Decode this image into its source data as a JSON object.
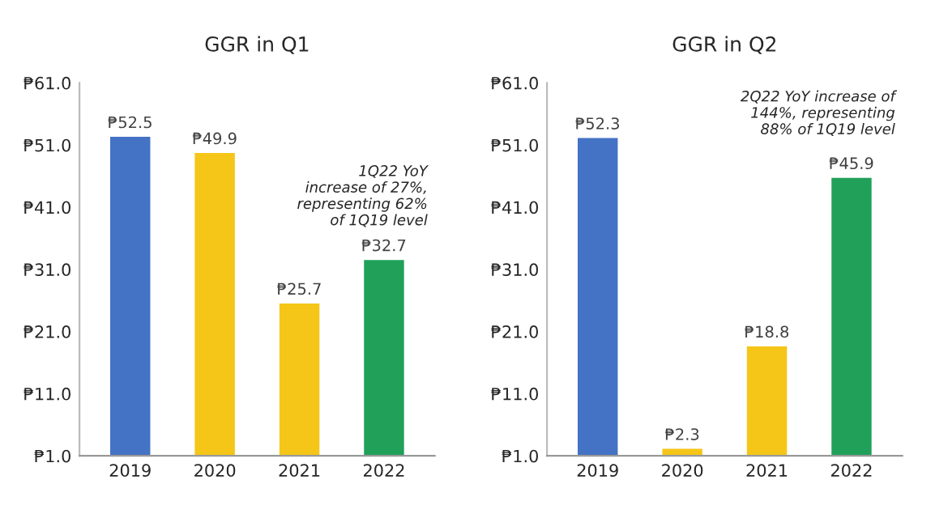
{
  "chart_data": [
    {
      "type": "bar",
      "title": "GGR in Q1",
      "categories": [
        "2019",
        "2020",
        "2021",
        "2022"
      ],
      "values": [
        52.5,
        49.9,
        25.7,
        32.7
      ],
      "colors": [
        "#4472c4",
        "#f5c518",
        "#f5c518",
        "#21a05a"
      ],
      "value_labels": [
        "₱52.5",
        "₱49.9",
        "₱25.7",
        "₱32.7"
      ],
      "ylim": [
        1,
        61
      ],
      "yticks": [
        {
          "value": 1,
          "label": "₱1.0"
        },
        {
          "value": 11,
          "label": "₱11.0"
        },
        {
          "value": 21,
          "label": "₱21.0"
        },
        {
          "value": 31,
          "label": "₱31.0"
        },
        {
          "value": 41,
          "label": "₱41.0"
        },
        {
          "value": 51,
          "label": "₱51.0"
        },
        {
          "value": 61,
          "label": "₱61.0"
        }
      ],
      "grid": false,
      "annotations": [
        "1Q22 YoY\nincrease of 27%,\nrepresenting 62%\nof 1Q19 level"
      ]
    },
    {
      "type": "bar",
      "title": "GGR in Q2",
      "categories": [
        "2019",
        "2020",
        "2021",
        "2022"
      ],
      "values": [
        52.3,
        2.3,
        18.8,
        45.9
      ],
      "colors": [
        "#4472c4",
        "#f5c518",
        "#f5c518",
        "#21a05a"
      ],
      "value_labels": [
        "₱52.3",
        "₱2.3",
        "₱18.8",
        "₱45.9"
      ],
      "ylim": [
        1,
        61
      ],
      "yticks": [
        {
          "value": 1,
          "label": "₱1.0"
        },
        {
          "value": 11,
          "label": "₱11.0"
        },
        {
          "value": 21,
          "label": "₱21.0"
        },
        {
          "value": 31,
          "label": "₱31.0"
        },
        {
          "value": 41,
          "label": "₱41.0"
        },
        {
          "value": 51,
          "label": "₱51.0"
        },
        {
          "value": 61,
          "label": "₱61.0"
        }
      ],
      "grid": false,
      "annotations": [
        "2Q22 YoY increase of\n144%, representing\n88% of 1Q19 level"
      ]
    }
  ]
}
